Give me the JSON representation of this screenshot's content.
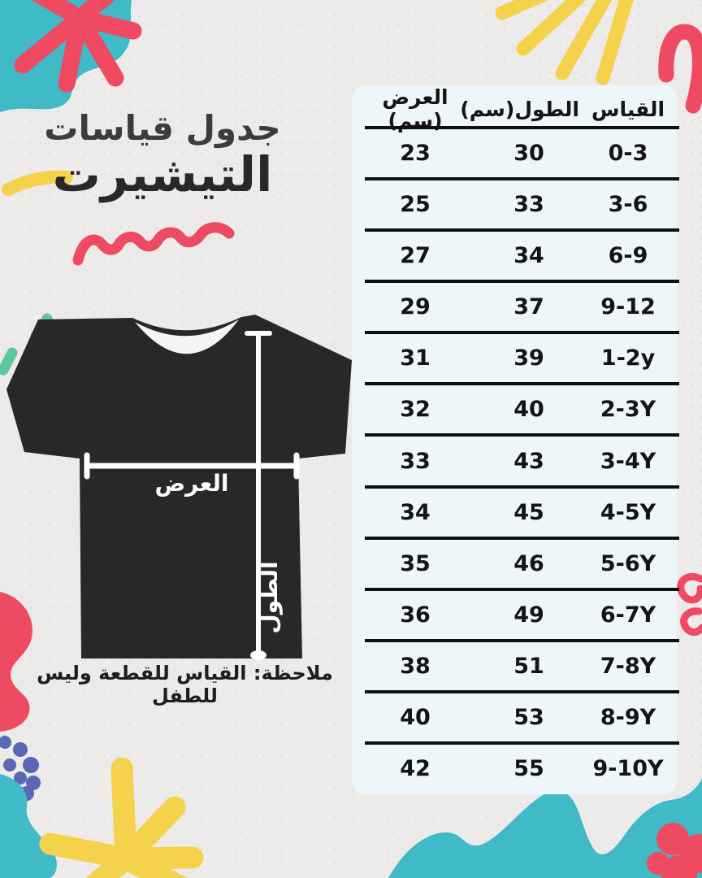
{
  "page": {
    "title_line1": "جدول قياسات",
    "title_line2": "التيشيرت",
    "note": "ملاحظة: القياس للقطعة وليس للطفل"
  },
  "diagram": {
    "width_label": "العرض",
    "length_label": "الطول",
    "shirt_color": "#282828"
  },
  "colors": {
    "background": "#edebe9",
    "table_background": "#edf6f8",
    "divider": "#0f0f0f",
    "teal": "#3fbac6",
    "mint": "#5fc7a0",
    "yellow": "#f5d24b",
    "red": "#ee4a62",
    "blue_dot": "#5a67b5",
    "text_dark": "#141414"
  },
  "chart_data": {
    "type": "table",
    "title": "جدول قياسات التيشيرت",
    "columns": [
      "القياس",
      "الطول(سم)",
      "العرض (سم)"
    ],
    "rows": [
      [
        "0-3",
        "30",
        "23"
      ],
      [
        "3-6",
        "33",
        "25"
      ],
      [
        "6-9",
        "34",
        "27"
      ],
      [
        "9-12",
        "37",
        "29"
      ],
      [
        "1-2y",
        "39",
        "31"
      ],
      [
        "2-3Y",
        "40",
        "32"
      ],
      [
        "3-4Y",
        "43",
        "33"
      ],
      [
        "4-5Y",
        "45",
        "34"
      ],
      [
        "5-6Y",
        "46",
        "35"
      ],
      [
        "6-7Y",
        "49",
        "36"
      ],
      [
        "7-8Y",
        "51",
        "38"
      ],
      [
        "8-9Y",
        "53",
        "40"
      ],
      [
        "9-10Y",
        "55",
        "42"
      ]
    ],
    "note": "ملاحظة: القياس للقطعة وليس للطفل",
    "legend_position": "none",
    "grid": "horizontal-dividers"
  }
}
